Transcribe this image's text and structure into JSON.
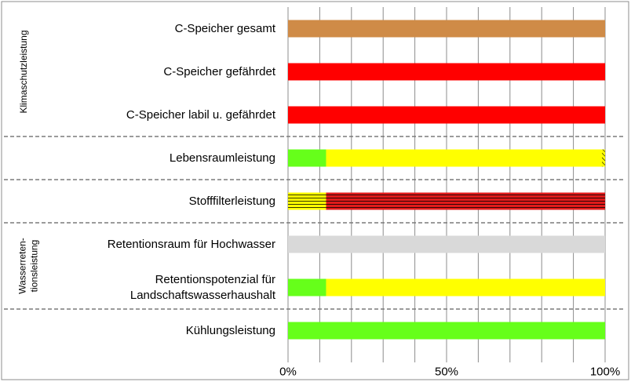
{
  "chart_data": {
    "type": "bar",
    "orientation": "horizontal",
    "stacked": true,
    "xlim": [
      0,
      100
    ],
    "x_ticks": [
      "0%",
      "50%",
      "100%"
    ],
    "categories": [
      [
        "C-Speicher gesamt"
      ],
      [
        "C-Speicher gefährdet"
      ],
      [
        "C-Speicher labil u. gefährdet"
      ],
      [
        "Lebensraumleistung"
      ],
      [
        "Stofffilterleistung"
      ],
      [
        "Retentionsraum für Hochwasser"
      ],
      [
        "Retentionspotenzial für",
        "Landschaftswasserhaushalt"
      ],
      [
        "Kühlungsleistung"
      ]
    ],
    "groups": [
      {
        "lines": [
          "Klimaschutzleistung"
        ]
      },
      {
        "lines": [
          "Wasserreten-",
          "tionsleistung"
        ]
      }
    ],
    "bars": [
      [
        {
          "value": 100,
          "color": "#CF8B47",
          "pattern": "none"
        }
      ],
      [
        {
          "value": 100,
          "color": "#FF0000",
          "pattern": "none"
        }
      ],
      [
        {
          "value": 100,
          "color": "#FF0000",
          "pattern": "none"
        }
      ],
      [
        {
          "value": 12,
          "color": "#66FF1A",
          "pattern": "none"
        },
        {
          "value": 87,
          "color": "#FFFF00",
          "pattern": "none"
        },
        {
          "value": 1,
          "color": "#FFFF00",
          "pattern": "diagonal"
        }
      ],
      [
        {
          "value": 12,
          "color": "#FFFF00",
          "pattern": "horizontal"
        },
        {
          "value": 88,
          "color": "#E01B1B",
          "pattern": "horizontal"
        }
      ],
      [
        {
          "value": 100,
          "color": "#D9D9D9",
          "pattern": "none"
        }
      ],
      [
        {
          "value": 12,
          "color": "#66FF1A",
          "pattern": "none"
        },
        {
          "value": 88,
          "color": "#FFFF00",
          "pattern": "none"
        }
      ],
      [
        {
          "value": 100,
          "color": "#66FF1A",
          "pattern": "none"
        }
      ]
    ]
  }
}
